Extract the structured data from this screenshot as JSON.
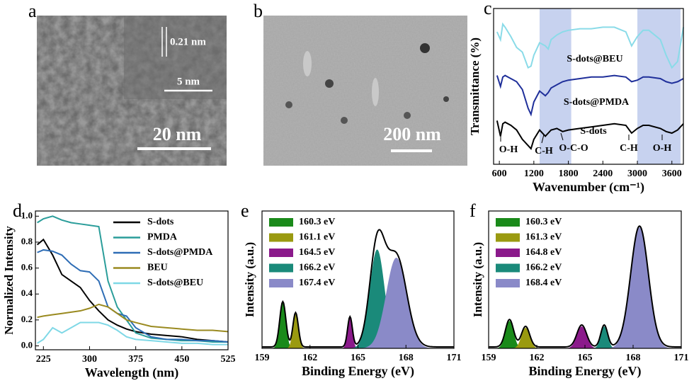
{
  "panel_labels": [
    "a",
    "b",
    "c",
    "d",
    "e",
    "f"
  ],
  "images": [
    {
      "labels": [
        "0.21 nm",
        "5 nm",
        "20 nm"
      ]
    },
    {
      "labels": [
        "200 nm"
      ]
    }
  ],
  "chart_data": [
    {
      "type": "line",
      "xlabel": "Wavenumber (cm⁻¹)",
      "ylabel": "Transmittance (%)",
      "xlim": [
        500,
        3800
      ],
      "ylim": [
        0,
        1
      ],
      "xticks": [
        600,
        1200,
        1800,
        2400,
        3000,
        3600
      ],
      "bands": [
        [
          1300,
          1850
        ],
        [
          3000,
          3750
        ]
      ],
      "band_color": "#b4c3ea",
      "x": [
        560,
        620,
        660,
        700,
        800,
        900,
        1000,
        1100,
        1150,
        1200,
        1300,
        1400,
        1450,
        1500,
        1600,
        1700,
        1800,
        2000,
        2200,
        2400,
        2600,
        2800,
        2900,
        3000,
        3100,
        3200,
        3400,
        3500,
        3600,
        3700,
        3800
      ],
      "series": [
        {
          "color": "#8adbe8",
          "values": [
            0.85,
            0.8,
            0.9,
            0.88,
            0.82,
            0.75,
            0.72,
            0.62,
            0.63,
            0.7,
            0.78,
            0.76,
            0.74,
            0.8,
            0.83,
            0.85,
            0.86,
            0.87,
            0.87,
            0.88,
            0.88,
            0.85,
            0.76,
            0.82,
            0.86,
            0.86,
            0.8,
            0.7,
            0.62,
            0.66,
            0.88
          ]
        },
        {
          "color": "#1f2f9a",
          "values": [
            0.57,
            0.5,
            0.56,
            0.57,
            0.55,
            0.53,
            0.48,
            0.36,
            0.32,
            0.4,
            0.47,
            0.44,
            0.46,
            0.49,
            0.51,
            0.53,
            0.54,
            0.55,
            0.56,
            0.56,
            0.57,
            0.56,
            0.53,
            0.54,
            0.56,
            0.56,
            0.55,
            0.53,
            0.52,
            0.53,
            0.55
          ]
        },
        {
          "color": "#000000",
          "values": [
            0.28,
            0.18,
            0.26,
            0.27,
            0.25,
            0.22,
            0.16,
            0.12,
            0.1,
            0.16,
            0.22,
            0.18,
            0.2,
            0.22,
            0.23,
            0.21,
            0.22,
            0.23,
            0.24,
            0.25,
            0.26,
            0.25,
            0.2,
            0.23,
            0.25,
            0.25,
            0.23,
            0.21,
            0.2,
            0.22,
            0.26
          ]
        }
      ],
      "annotations": [
        "S-dots@BEU",
        "S-dots@PMDA",
        "S-dots",
        "O-H",
        "C-H",
        "O-C-O",
        "C-H",
        "O-H"
      ]
    },
    {
      "type": "line",
      "xlabel": "Wavelength (nm)",
      "ylabel": "Normalized Intensity",
      "xlim": [
        212,
        525
      ],
      "ylim": [
        -0.03,
        1.04
      ],
      "xticks": [
        225,
        300,
        375,
        450,
        525
      ],
      "yticks": [
        {
          "value": 0,
          "label": "0.0"
        },
        {
          "value": 0.2,
          "label": "0.2"
        },
        {
          "value": 0.4,
          "label": "0.4"
        },
        {
          "value": 0.6,
          "label": "0.6"
        },
        {
          "value": 0.8,
          "label": "0.8"
        },
        {
          "value": 1,
          "label": "1.0"
        }
      ],
      "legend": "upper right",
      "x": [
        215,
        225,
        240,
        255,
        270,
        285,
        300,
        315,
        330,
        345,
        360,
        375,
        400,
        425,
        450,
        475,
        500,
        525
      ],
      "series": [
        {
          "name": "S-dots",
          "color": "#000000",
          "values": [
            0.78,
            0.82,
            0.7,
            0.55,
            0.5,
            0.45,
            0.35,
            0.27,
            0.2,
            0.16,
            0.13,
            0.11,
            0.09,
            0.08,
            0.07,
            0.05,
            0.04,
            0.03
          ]
        },
        {
          "name": "PMDA",
          "color": "#2a9d9a",
          "values": [
            0.95,
            0.98,
            1.0,
            0.97,
            0.95,
            0.94,
            0.93,
            0.92,
            0.5,
            0.3,
            0.2,
            0.1,
            0.06,
            0.05,
            0.04,
            0.04,
            0.03,
            0.03
          ]
        },
        {
          "name": "S-dots@PMDA",
          "color": "#2e6db5",
          "values": [
            0.72,
            0.74,
            0.73,
            0.7,
            0.63,
            0.58,
            0.57,
            0.5,
            0.3,
            0.25,
            0.23,
            0.14,
            0.07,
            0.05,
            0.05,
            0.04,
            0.04,
            0.03
          ]
        },
        {
          "name": "BEU",
          "color": "#9a8a20",
          "values": [
            0.22,
            0.23,
            0.24,
            0.25,
            0.26,
            0.27,
            0.29,
            0.32,
            0.3,
            0.25,
            0.2,
            0.18,
            0.15,
            0.14,
            0.13,
            0.12,
            0.12,
            0.11
          ]
        },
        {
          "name": "S-dots@BEU",
          "color": "#7fd8e6",
          "values": [
            0.02,
            0.05,
            0.14,
            0.1,
            0.14,
            0.18,
            0.18,
            0.18,
            0.16,
            0.12,
            0.07,
            0.05,
            0.04,
            0.03,
            0.02,
            0.02,
            0.01,
            0.01
          ]
        }
      ]
    },
    {
      "type": "peaks",
      "xlabel": "Binding Energy (eV)",
      "ylabel": "Intensity (a.u.)",
      "xlim": [
        159,
        171
      ],
      "ylim": [
        0,
        1
      ],
      "xticks": [
        159,
        162,
        165,
        168,
        171
      ],
      "legend": "upper left",
      "series": [
        {
          "name": "160.3 eV",
          "color": "#1a8a1a",
          "center": 160.3,
          "height": 0.33,
          "fwhm": 0.45
        },
        {
          "name": "161.1 eV",
          "color": "#9a9a10",
          "center": 161.1,
          "height": 0.25,
          "fwhm": 0.4
        },
        {
          "name": "164.5 eV",
          "color": "#8b1a8b",
          "center": 164.5,
          "height": 0.22,
          "fwhm": 0.35
        },
        {
          "name": "166.2 eV",
          "color": "#1a8a7a",
          "center": 166.2,
          "height": 0.72,
          "fwhm": 1.1
        },
        {
          "name": "167.4 eV",
          "color": "#8a8ac8",
          "center": 167.4,
          "height": 0.66,
          "fwhm": 1.5
        }
      ]
    },
    {
      "type": "peaks",
      "xlabel": "Binding Energy (eV)",
      "ylabel": "Intensity (a.u.)",
      "xlim": [
        159,
        171
      ],
      "ylim": [
        0,
        1
      ],
      "xticks": [
        159,
        162,
        165,
        168,
        171
      ],
      "legend": "upper left",
      "series": [
        {
          "name": "160.3 eV",
          "color": "#1a8a1a",
          "center": 160.3,
          "height": 0.2,
          "fwhm": 0.6
        },
        {
          "name": "161.3 eV",
          "color": "#9a9a10",
          "center": 161.3,
          "height": 0.15,
          "fwhm": 0.6
        },
        {
          "name": "164.8 eV",
          "color": "#8b1a8b",
          "center": 164.8,
          "height": 0.16,
          "fwhm": 0.7
        },
        {
          "name": "166.2 eV",
          "color": "#1a8a7a",
          "center": 166.2,
          "height": 0.16,
          "fwhm": 0.5
        },
        {
          "name": "168.4 eV",
          "color": "#8a8ac8",
          "center": 168.4,
          "height": 0.88,
          "fwhm": 1.3
        }
      ]
    }
  ]
}
